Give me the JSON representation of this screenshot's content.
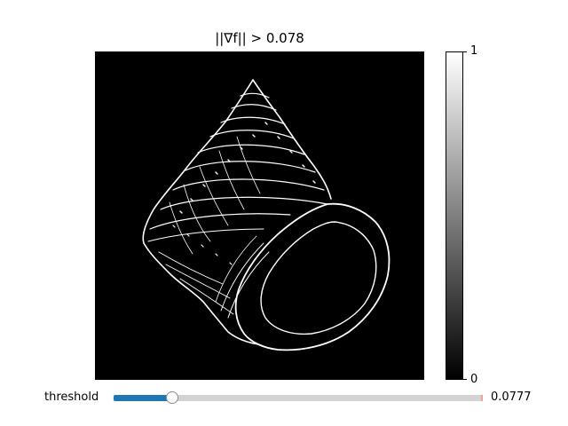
{
  "plot": {
    "title": "||∇f|| > 0.078"
  },
  "colorbar": {
    "max_label": "1",
    "min_label": "0",
    "colors": {
      "top": "#ffffff",
      "bottom": "#000000"
    }
  },
  "slider": {
    "label": "threshold",
    "value_text": "0.0777",
    "fraction": 0.159,
    "fill_color": "#1f77b4",
    "track_color": "#d3d3d3"
  },
  "image": {
    "subject": "seashell-edge-map",
    "background": "#000000",
    "edge_color": "#ffffff"
  }
}
